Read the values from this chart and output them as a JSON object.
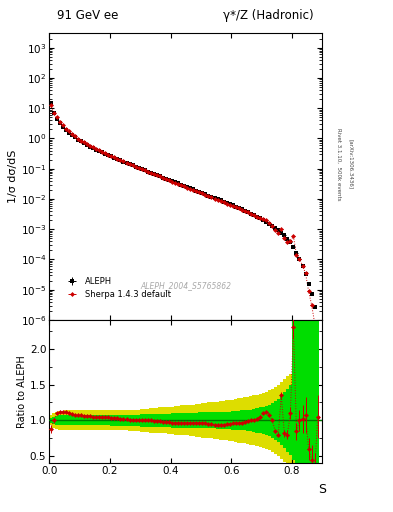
{
  "title_left": "91 GeV ee",
  "title_right": "γ*/Z (Hadronic)",
  "ylabel_main": "1/σ dσ/dS",
  "ylabel_ratio": "Ratio to ALEPH",
  "xlabel": "S",
  "watermark": "ALEPH_2004_S5765862",
  "rivet_label": "Rivet 3.1.10,  500k events",
  "arxiv_label": "[arXiv:1306.3436]",
  "legend_data": "ALEPH",
  "legend_mc": "Sherpa 1.4.3 default",
  "data_x": [
    0.005,
    0.015,
    0.025,
    0.035,
    0.045,
    0.055,
    0.065,
    0.075,
    0.085,
    0.095,
    0.105,
    0.115,
    0.125,
    0.135,
    0.145,
    0.155,
    0.165,
    0.175,
    0.185,
    0.195,
    0.205,
    0.215,
    0.225,
    0.235,
    0.245,
    0.255,
    0.265,
    0.275,
    0.285,
    0.295,
    0.305,
    0.315,
    0.325,
    0.335,
    0.345,
    0.355,
    0.365,
    0.375,
    0.385,
    0.395,
    0.405,
    0.415,
    0.425,
    0.435,
    0.445,
    0.455,
    0.465,
    0.475,
    0.485,
    0.495,
    0.505,
    0.515,
    0.525,
    0.535,
    0.545,
    0.555,
    0.565,
    0.575,
    0.585,
    0.595,
    0.605,
    0.615,
    0.625,
    0.635,
    0.645,
    0.655,
    0.665,
    0.675,
    0.685,
    0.695,
    0.705,
    0.715,
    0.725,
    0.735,
    0.745,
    0.755,
    0.765,
    0.775,
    0.785,
    0.795,
    0.805,
    0.815,
    0.825,
    0.835,
    0.845,
    0.855,
    0.865,
    0.875,
    0.885
  ],
  "data_y": [
    15.0,
    7.0,
    4.5,
    3.2,
    2.4,
    1.9,
    1.55,
    1.28,
    1.08,
    0.92,
    0.8,
    0.7,
    0.61,
    0.54,
    0.48,
    0.43,
    0.385,
    0.345,
    0.31,
    0.28,
    0.255,
    0.23,
    0.208,
    0.188,
    0.17,
    0.155,
    0.14,
    0.128,
    0.116,
    0.106,
    0.096,
    0.088,
    0.08,
    0.073,
    0.067,
    0.061,
    0.056,
    0.051,
    0.047,
    0.043,
    0.039,
    0.036,
    0.033,
    0.03,
    0.027,
    0.0248,
    0.0226,
    0.0206,
    0.0188,
    0.0172,
    0.0157,
    0.0143,
    0.013,
    0.0119,
    0.0108,
    0.00985,
    0.00896,
    0.00815,
    0.0074,
    0.00672,
    0.00611,
    0.00553,
    0.005,
    0.00452,
    0.00407,
    0.00365,
    0.00327,
    0.00291,
    0.00258,
    0.00228,
    0.002,
    0.00174,
    0.00151,
    0.0013,
    0.00111,
    0.00094,
    0.00078,
    0.00063,
    0.00049,
    0.000366,
    0.000256,
    0.00017,
    0.000106,
    6.2e-05,
    3.2e-05,
    1.5e-05,
    7e-06,
    2.6e-06,
    8e-07
  ],
  "data_yerr": [
    0.3,
    0.15,
    0.09,
    0.06,
    0.045,
    0.035,
    0.028,
    0.022,
    0.018,
    0.015,
    0.013,
    0.011,
    0.009,
    0.008,
    0.007,
    0.006,
    0.0055,
    0.005,
    0.0045,
    0.004,
    0.0036,
    0.0032,
    0.0029,
    0.0026,
    0.0024,
    0.0022,
    0.002,
    0.0018,
    0.0016,
    0.0015,
    0.0013,
    0.0012,
    0.0011,
    0.001,
    0.00092,
    0.00084,
    0.00077,
    0.0007,
    0.00064,
    0.00058,
    0.00053,
    0.00048,
    0.00044,
    0.0004,
    0.00036,
    0.00033,
    0.0003,
    0.00027,
    0.00025,
    0.00023,
    0.00021,
    0.00019,
    0.000174,
    0.000158,
    0.000144,
    0.000131,
    0.000119,
    0.000108,
    9.8e-05,
    8.9e-05,
    8e-05,
    7.2e-05,
    6.5e-05,
    5.8e-05,
    5.2e-05,
    4.6e-05,
    4.1e-05,
    3.65e-05,
    3.2e-05,
    2.8e-05,
    2.45e-05,
    2.11e-05,
    1.8e-05,
    1.53e-05,
    1.29e-05,
    1.07e-05,
    8.8e-06,
    7e-06,
    5.4e-06,
    4e-06,
    2.8e-06,
    1.9e-06,
    1.2e-06,
    7.2e-07,
    3.8e-07,
    1.8e-07,
    8.5e-08,
    3.2e-08,
    1e-08
  ],
  "mc_ratio": [
    0.88,
    1.0,
    1.1,
    1.12,
    1.12,
    1.12,
    1.1,
    1.09,
    1.08,
    1.07,
    1.07,
    1.06,
    1.06,
    1.06,
    1.05,
    1.05,
    1.05,
    1.04,
    1.04,
    1.04,
    1.03,
    1.03,
    1.03,
    1.02,
    1.02,
    1.02,
    1.01,
    1.01,
    1.01,
    1.01,
    1.0,
    1.0,
    1.0,
    1.0,
    0.99,
    0.99,
    0.99,
    0.98,
    0.98,
    0.98,
    0.97,
    0.97,
    0.96,
    0.96,
    0.96,
    0.96,
    0.97,
    0.97,
    0.97,
    0.97,
    0.97,
    0.96,
    0.95,
    0.95,
    0.94,
    0.94,
    0.94,
    0.94,
    0.95,
    0.95,
    0.96,
    0.96,
    0.97,
    0.97,
    0.98,
    0.99,
    1.0,
    1.01,
    1.02,
    1.05,
    1.1,
    1.12,
    1.08,
    1.0,
    0.85,
    0.8,
    1.35,
    0.82,
    0.8,
    1.1,
    2.3,
    0.85,
    1.0,
    1.02,
    1.08,
    0.6,
    0.45,
    0.3,
    1.05
  ],
  "mc_ratio_err": [
    0.05,
    0.03,
    0.02,
    0.015,
    0.012,
    0.01,
    0.009,
    0.008,
    0.008,
    0.007,
    0.007,
    0.007,
    0.006,
    0.006,
    0.006,
    0.005,
    0.005,
    0.005,
    0.005,
    0.005,
    0.004,
    0.004,
    0.004,
    0.004,
    0.004,
    0.004,
    0.003,
    0.003,
    0.003,
    0.003,
    0.003,
    0.003,
    0.003,
    0.003,
    0.003,
    0.003,
    0.003,
    0.003,
    0.003,
    0.003,
    0.003,
    0.003,
    0.003,
    0.003,
    0.003,
    0.003,
    0.003,
    0.003,
    0.003,
    0.003,
    0.003,
    0.003,
    0.003,
    0.003,
    0.003,
    0.004,
    0.004,
    0.004,
    0.004,
    0.004,
    0.004,
    0.004,
    0.004,
    0.005,
    0.005,
    0.005,
    0.005,
    0.006,
    0.006,
    0.007,
    0.008,
    0.01,
    0.012,
    0.015,
    0.02,
    0.025,
    0.04,
    0.05,
    0.06,
    0.08,
    0.15,
    0.12,
    0.15,
    0.2,
    0.25,
    0.15,
    0.2,
    0.25,
    0.3
  ],
  "band_yellow_lo": [
    0.93,
    0.9,
    0.88,
    0.87,
    0.87,
    0.86,
    0.86,
    0.86,
    0.86,
    0.86,
    0.86,
    0.86,
    0.86,
    0.86,
    0.86,
    0.86,
    0.86,
    0.86,
    0.86,
    0.86,
    0.86,
    0.86,
    0.86,
    0.86,
    0.86,
    0.86,
    0.85,
    0.85,
    0.85,
    0.85,
    0.84,
    0.84,
    0.84,
    0.83,
    0.83,
    0.83,
    0.82,
    0.82,
    0.82,
    0.81,
    0.81,
    0.8,
    0.8,
    0.79,
    0.79,
    0.79,
    0.78,
    0.78,
    0.77,
    0.77,
    0.76,
    0.76,
    0.75,
    0.75,
    0.74,
    0.74,
    0.73,
    0.73,
    0.72,
    0.71,
    0.71,
    0.7,
    0.69,
    0.69,
    0.68,
    0.67,
    0.66,
    0.65,
    0.64,
    0.63,
    0.62,
    0.6,
    0.58,
    0.56,
    0.53,
    0.5,
    0.46,
    0.42,
    0.38,
    0.35,
    0.35,
    0.35,
    0.35,
    0.35,
    0.35,
    0.35,
    0.35,
    0.35,
    0.35
  ],
  "band_yellow_hi": [
    1.07,
    1.1,
    1.12,
    1.13,
    1.13,
    1.14,
    1.14,
    1.14,
    1.14,
    1.14,
    1.14,
    1.14,
    1.14,
    1.14,
    1.14,
    1.14,
    1.14,
    1.14,
    1.14,
    1.14,
    1.14,
    1.14,
    1.14,
    1.14,
    1.14,
    1.14,
    1.15,
    1.15,
    1.15,
    1.15,
    1.16,
    1.16,
    1.16,
    1.17,
    1.17,
    1.17,
    1.18,
    1.18,
    1.18,
    1.19,
    1.19,
    1.2,
    1.2,
    1.21,
    1.21,
    1.21,
    1.22,
    1.22,
    1.23,
    1.23,
    1.24,
    1.24,
    1.25,
    1.25,
    1.26,
    1.26,
    1.27,
    1.27,
    1.28,
    1.29,
    1.29,
    1.3,
    1.31,
    1.31,
    1.32,
    1.33,
    1.34,
    1.35,
    1.36,
    1.37,
    1.38,
    1.4,
    1.42,
    1.44,
    1.47,
    1.5,
    1.54,
    1.58,
    1.62,
    1.65,
    2.5,
    2.5,
    2.5,
    2.5,
    2.5,
    2.5,
    2.5,
    2.5,
    2.5
  ],
  "band_green_lo": [
    0.97,
    0.95,
    0.94,
    0.93,
    0.93,
    0.93,
    0.93,
    0.93,
    0.93,
    0.93,
    0.93,
    0.93,
    0.93,
    0.93,
    0.93,
    0.93,
    0.93,
    0.93,
    0.93,
    0.93,
    0.92,
    0.92,
    0.92,
    0.92,
    0.92,
    0.92,
    0.92,
    0.92,
    0.92,
    0.92,
    0.91,
    0.91,
    0.91,
    0.91,
    0.91,
    0.91,
    0.91,
    0.91,
    0.91,
    0.91,
    0.9,
    0.9,
    0.9,
    0.9,
    0.9,
    0.9,
    0.9,
    0.9,
    0.9,
    0.89,
    0.89,
    0.89,
    0.89,
    0.89,
    0.89,
    0.88,
    0.88,
    0.88,
    0.88,
    0.88,
    0.87,
    0.87,
    0.87,
    0.86,
    0.86,
    0.85,
    0.85,
    0.84,
    0.83,
    0.82,
    0.81,
    0.8,
    0.78,
    0.76,
    0.73,
    0.7,
    0.66,
    0.61,
    0.56,
    0.51,
    0.45,
    0.4,
    0.35,
    0.35,
    0.35,
    0.35,
    0.35,
    0.35,
    0.35
  ],
  "band_green_hi": [
    1.03,
    1.05,
    1.06,
    1.07,
    1.07,
    1.07,
    1.07,
    1.07,
    1.07,
    1.07,
    1.07,
    1.07,
    1.07,
    1.07,
    1.07,
    1.07,
    1.07,
    1.07,
    1.07,
    1.07,
    1.08,
    1.08,
    1.08,
    1.08,
    1.08,
    1.08,
    1.08,
    1.08,
    1.08,
    1.08,
    1.09,
    1.09,
    1.09,
    1.09,
    1.09,
    1.09,
    1.09,
    1.09,
    1.09,
    1.09,
    1.1,
    1.1,
    1.1,
    1.1,
    1.1,
    1.1,
    1.1,
    1.1,
    1.1,
    1.11,
    1.11,
    1.11,
    1.11,
    1.11,
    1.11,
    1.12,
    1.12,
    1.12,
    1.12,
    1.12,
    1.13,
    1.13,
    1.13,
    1.14,
    1.14,
    1.15,
    1.15,
    1.16,
    1.17,
    1.18,
    1.19,
    1.2,
    1.22,
    1.24,
    1.27,
    1.3,
    1.34,
    1.39,
    1.44,
    1.49,
    2.5,
    2.5,
    2.5,
    2.5,
    2.5,
    2.5,
    2.5,
    2.5,
    2.5
  ],
  "xlim": [
    0.0,
    0.9
  ],
  "ylim_lo": 1e-06,
  "ylim_hi": 3000,
  "ratio_ylim": [
    0.4,
    2.4
  ],
  "ratio_yticks": [
    0.5,
    1.0,
    1.5,
    2.0
  ],
  "band_green_color": "#00dd00",
  "band_yellow_color": "#dddd00",
  "last_bin_green_color": "#00cc00",
  "bg_color": "#ffffff",
  "data_color": "#000000",
  "mc_color": "#cc0000",
  "ref_line_color": "#007700"
}
